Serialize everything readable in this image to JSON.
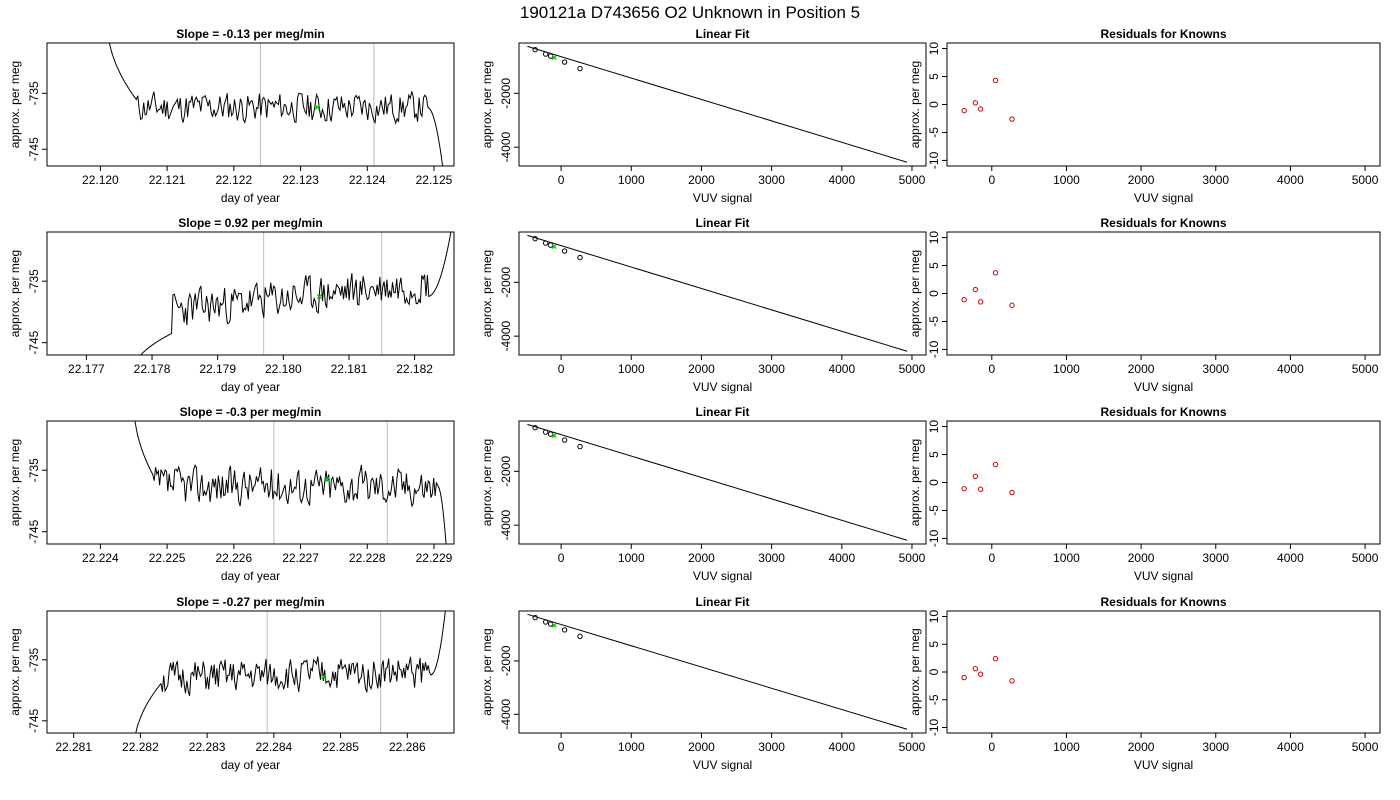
{
  "figure": {
    "title": "190121a      D743656   O2 Unknown in Position  5"
  },
  "colors": {
    "trace": "#000000",
    "marker_green": "#00cc00",
    "residual_red": "#cc0000",
    "vline_gray": "#bdbdbd",
    "fit_points": "#000000"
  },
  "chart_data": [
    {
      "type": "line",
      "row": 1,
      "title": "Slope =  -0.13  per meg/min",
      "xlabel": "day of year",
      "ylabel": "approx. per meg",
      "xlim": [
        22.1192,
        22.1253
      ],
      "ylim": [
        -748,
        -726
      ],
      "xticks": [
        "22.120",
        "22.121",
        "22.122",
        "22.123",
        "22.124",
        "22.125"
      ],
      "yticks": [
        "-735",
        "-745"
      ],
      "vlines": [
        22.1224,
        22.1241
      ],
      "marker": {
        "x": 22.12325,
        "y": -737.5
      },
      "series": [
        {
          "start": 22.1201,
          "end": 22.12515,
          "rise_from": -722,
          "rise_to": -736.3,
          "rise_end": 22.12055,
          "fall_to": -750,
          "fall_start": 22.1249,
          "level": -737.5,
          "amp": 1.6,
          "seed": 11
        }
      ]
    },
    {
      "type": "line",
      "row": 2,
      "title": "Slope =  0.92  per meg/min",
      "xlabel": "day of year",
      "ylabel": "approx. per meg",
      "xlim": [
        22.1764,
        22.1826
      ],
      "ylim": [
        -747,
        -727
      ],
      "xticks": [
        "22.177",
        "22.178",
        "22.179",
        "22.180",
        "22.181",
        "22.182"
      ],
      "yticks": [
        "-735",
        "-745"
      ],
      "vlines": [
        22.1797,
        22.1815
      ],
      "marker": {
        "x": 22.18055,
        "y": -737.5
      },
      "series": [
        {
          "start": 22.1777,
          "end": 22.1826,
          "rise_from": -750,
          "rise_to": -743.5,
          "rise_end": 22.1783,
          "fall_to": -724,
          "fall_start": 22.1822,
          "level": -737.5,
          "amp": 1.8,
          "seed": 23,
          "trend": 4.5
        }
      ]
    },
    {
      "type": "line",
      "row": 3,
      "title": "Slope =  -0.3  per meg/min",
      "xlabel": "day of year",
      "ylabel": "approx. per meg",
      "xlim": [
        22.2232,
        22.2293
      ],
      "ylim": [
        -747,
        -727
      ],
      "xticks": [
        "22.224",
        "22.225",
        "22.226",
        "22.227",
        "22.228",
        "22.229"
      ],
      "yticks": [
        "-735",
        "-745"
      ],
      "vlines": [
        22.2266,
        22.2283
      ],
      "marker": {
        "x": 22.2274,
        "y": -736.5
      },
      "series": [
        {
          "start": 22.2245,
          "end": 22.2292,
          "rise_from": -724,
          "rise_to": -736.0,
          "rise_end": 22.2248,
          "fall_to": -750,
          "fall_start": 22.22905,
          "level": -737.5,
          "amp": 1.8,
          "seed": 37
        }
      ]
    },
    {
      "type": "line",
      "row": 4,
      "title": "Slope =  -0.27  per meg/min",
      "xlabel": "day of year",
      "ylabel": "approx. per meg",
      "xlim": [
        22.2806,
        22.2867
      ],
      "ylim": [
        -747,
        -727
      ],
      "xticks": [
        "22.281",
        "22.282",
        "22.283",
        "22.284",
        "22.285",
        "22.286"
      ],
      "yticks": [
        "-735",
        "-745"
      ],
      "vlines": [
        22.2839,
        22.2856
      ],
      "marker": {
        "x": 22.28475,
        "y": -737.8
      },
      "series": [
        {
          "start": 22.2819,
          "end": 22.2866,
          "rise_from": -750,
          "rise_to": -739,
          "rise_end": 22.2823,
          "fall_to": -724,
          "fall_start": 22.28635,
          "level": -737.5,
          "amp": 1.6,
          "seed": 51,
          "trend": 1.2
        }
      ]
    },
    {
      "type": "scatter",
      "row": 1,
      "title": "Linear Fit",
      "xlabel": "VUV signal",
      "ylabel": "approx. per meg",
      "xlim": [
        -600,
        5200
      ],
      "ylim": [
        -4700,
        -130
      ],
      "xticks": [
        0,
        1000,
        2000,
        3000,
        4000,
        5000
      ],
      "yticks": [
        -2000,
        -4000
      ],
      "points_x": [
        -370,
        -220,
        -150,
        50,
        270
      ],
      "points_y": [
        -377,
        -542,
        -618,
        -838,
        -1080
      ],
      "fit_line": {
        "x": [
          -480,
          4930
        ],
        "y": [
          -254,
          -4560
        ]
      },
      "marker": {
        "x": -100,
        "y": -670
      }
    },
    {
      "type": "scatter",
      "row": 2,
      "title": "Linear Fit",
      "xlabel": "VUV signal",
      "ylabel": "approx. per meg",
      "xlim": [
        -600,
        5200
      ],
      "ylim": [
        -4700,
        -130
      ],
      "xticks": [
        0,
        1000,
        2000,
        3000,
        4000,
        5000
      ],
      "yticks": [
        -2000,
        -4000
      ],
      "points_x": [
        -370,
        -220,
        -150,
        50,
        270
      ],
      "points_y": [
        -377,
        -542,
        -618,
        -838,
        -1080
      ],
      "fit_line": {
        "x": [
          -480,
          4930
        ],
        "y": [
          -254,
          -4560
        ]
      },
      "marker": {
        "x": -100,
        "y": -670
      }
    },
    {
      "type": "scatter",
      "row": 3,
      "title": "Linear Fit",
      "xlabel": "VUV signal",
      "ylabel": "approx. per meg",
      "xlim": [
        -600,
        5200
      ],
      "ylim": [
        -4700,
        -130
      ],
      "xticks": [
        0,
        1000,
        2000,
        3000,
        4000,
        5000
      ],
      "yticks": [
        -2000,
        -4000
      ],
      "points_x": [
        -370,
        -220,
        -150,
        50,
        270
      ],
      "points_y": [
        -377,
        -542,
        -618,
        -838,
        -1080
      ],
      "fit_line": {
        "x": [
          -480,
          4930
        ],
        "y": [
          -254,
          -4560
        ]
      },
      "marker": {
        "x": -100,
        "y": -670
      }
    },
    {
      "type": "scatter",
      "row": 4,
      "title": "Linear Fit",
      "xlabel": "VUV signal",
      "ylabel": "approx. per meg",
      "xlim": [
        -600,
        5200
      ],
      "ylim": [
        -4700,
        -130
      ],
      "xticks": [
        0,
        1000,
        2000,
        3000,
        4000,
        5000
      ],
      "yticks": [
        -2000,
        -4000
      ],
      "points_x": [
        -370,
        -220,
        -150,
        50,
        270
      ],
      "points_y": [
        -377,
        -542,
        -618,
        -838,
        -1080
      ],
      "fit_line": {
        "x": [
          -480,
          4930
        ],
        "y": [
          -254,
          -4560
        ]
      },
      "marker": {
        "x": -100,
        "y": -670
      }
    },
    {
      "type": "scatter",
      "row": 1,
      "title": "Residuals for Knowns",
      "xlabel": "VUV signal",
      "ylabel": "approx. per meg",
      "xlim": [
        -600,
        5200
      ],
      "ylim": [
        -11,
        11
      ],
      "xticks": [
        0,
        1000,
        2000,
        3000,
        4000,
        5000
      ],
      "yticks": [
        10,
        5,
        0,
        -5,
        -10
      ],
      "points_x": [
        -370,
        -220,
        -150,
        50,
        270
      ],
      "points_y": [
        -1.1,
        0.3,
        -0.8,
        4.3,
        -2.6
      ]
    },
    {
      "type": "scatter",
      "row": 2,
      "title": "Residuals for Knowns",
      "xlabel": "VUV signal",
      "ylabel": "approx. per meg",
      "xlim": [
        -600,
        5200
      ],
      "ylim": [
        -11,
        11
      ],
      "xticks": [
        0,
        1000,
        2000,
        3000,
        4000,
        5000
      ],
      "yticks": [
        10,
        5,
        0,
        -5,
        -10
      ],
      "points_x": [
        -370,
        -220,
        -150,
        50,
        270
      ],
      "points_y": [
        -1.1,
        0.7,
        -1.5,
        3.7,
        -2.1
      ]
    },
    {
      "type": "scatter",
      "row": 3,
      "title": "Residuals for Knowns",
      "xlabel": "VUV signal",
      "ylabel": "approx. per meg",
      "xlim": [
        -600,
        5200
      ],
      "ylim": [
        -11,
        11
      ],
      "xticks": [
        0,
        1000,
        2000,
        3000,
        4000,
        5000
      ],
      "yticks": [
        10,
        5,
        0,
        -5,
        -10
      ],
      "points_x": [
        -370,
        -220,
        -150,
        50,
        270
      ],
      "points_y": [
        -1.1,
        1.1,
        -1.2,
        3.2,
        -1.8
      ]
    },
    {
      "type": "scatter",
      "row": 4,
      "title": "Residuals for Knowns",
      "xlabel": "VUV signal",
      "ylabel": "approx. per meg",
      "xlim": [
        -600,
        5200
      ],
      "ylim": [
        -11,
        11
      ],
      "xticks": [
        0,
        1000,
        2000,
        3000,
        4000,
        5000
      ],
      "yticks": [
        10,
        5,
        0,
        -5,
        -10
      ],
      "points_x": [
        -370,
        -220,
        -150,
        50,
        270
      ],
      "points_y": [
        -1.0,
        0.6,
        -0.4,
        2.4,
        -1.6
      ]
    }
  ]
}
